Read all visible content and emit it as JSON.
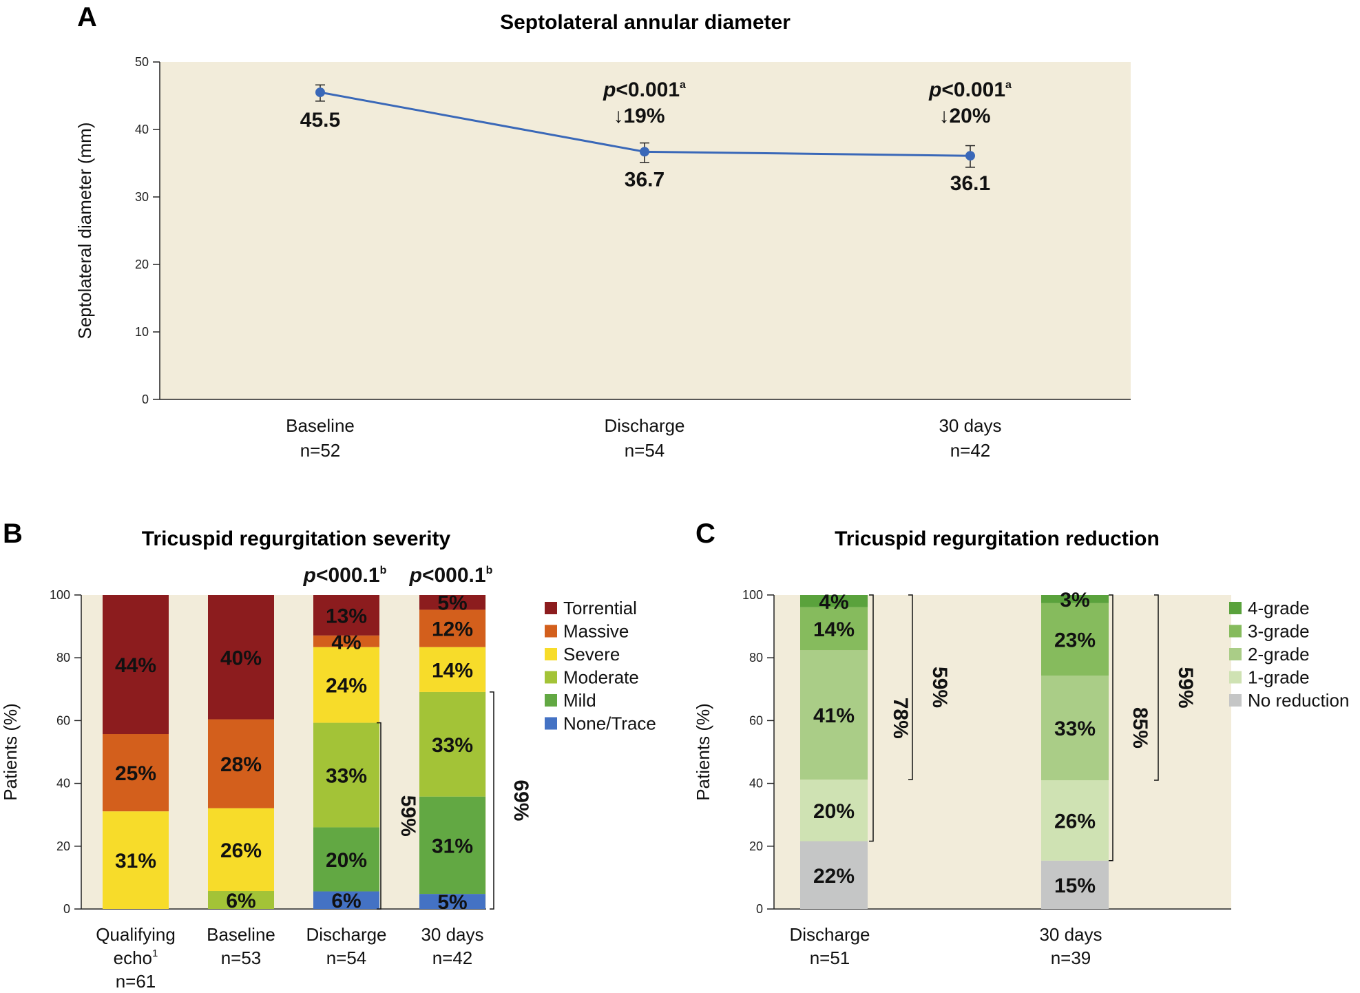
{
  "chart_data": [
    {
      "panel": "A",
      "type": "line",
      "title": "Septolateral annular diameter",
      "ylabel": "Septolateral diameter (mm)",
      "ylim": [
        0,
        50
      ],
      "yticks": [
        "0",
        "10",
        "20",
        "30",
        "40",
        "50"
      ],
      "categories": [
        {
          "label": "Baseline",
          "n": "n=52"
        },
        {
          "label": "Discharge",
          "n": "n=54"
        },
        {
          "label": "30 days",
          "n": "n=42"
        }
      ],
      "values": [
        45.5,
        36.7,
        36.1
      ],
      "value_labels": [
        "45.5",
        "36.7",
        "36.1"
      ],
      "error": [
        {
          "lo": 44.2,
          "hi": 46.6
        },
        {
          "lo": 35.1,
          "hi": 38.0
        },
        {
          "lo": 34.4,
          "hi": 37.6
        }
      ],
      "annotations": [
        {
          "point": 1,
          "p_prefix": "p",
          "p_text": "<0.001",
          "p_sup": "a",
          "change": "↓19%"
        },
        {
          "point": 2,
          "p_prefix": "p",
          "p_text": "<0.001",
          "p_sup": "a",
          "change": "↓20%"
        }
      ],
      "color": "#3a68b8",
      "background": "#f2ecda"
    },
    {
      "panel": "B",
      "type": "bar",
      "stacked": true,
      "title": "Tricuspid regurgitation severity",
      "ylabel": "Patients (%)",
      "ylim": [
        0,
        100
      ],
      "yticks": [
        "0",
        "20",
        "40",
        "60",
        "80",
        "100"
      ],
      "categories": [
        {
          "line1": "Qualifying",
          "line2": "echo",
          "line2_sup": "1",
          "n": "n=61"
        },
        {
          "line1": "Baseline",
          "line2": "",
          "line2_sup": "",
          "n": "n=53"
        },
        {
          "line1": "Discharge",
          "line2": "",
          "line2_sup": "",
          "n": "n=54"
        },
        {
          "line1": "30 days",
          "line2": "",
          "line2_sup": "",
          "n": "n=42"
        }
      ],
      "series": [
        {
          "name": "None/Trace",
          "color": "#4472c4",
          "values": [
            0,
            0,
            5.6,
            4.8
          ],
          "labels": [
            "",
            "",
            "6%",
            "5%"
          ]
        },
        {
          "name": "Mild",
          "color": "#62a843",
          "values": [
            0,
            0,
            20.4,
            31.0
          ],
          "labels": [
            "",
            "",
            "20%",
            "31%"
          ]
        },
        {
          "name": "Moderate",
          "color": "#a3c337",
          "values": [
            0,
            5.7,
            33.3,
            33.3
          ],
          "labels": [
            "",
            "6%",
            "33%",
            "33%"
          ]
        },
        {
          "name": "Severe",
          "color": "#f7dc2a",
          "values": [
            31.1,
            26.4,
            24.1,
            14.3
          ],
          "labels": [
            "31%",
            "26%",
            "24%",
            "14%"
          ]
        },
        {
          "name": "Massive",
          "color": "#d35f1c",
          "values": [
            24.6,
            28.3,
            3.7,
            11.9
          ],
          "labels": [
            "25%",
            "28%",
            "4%",
            "12%"
          ]
        },
        {
          "name": "Torrential",
          "color": "#8c1c1e",
          "values": [
            44.3,
            39.6,
            12.9,
            4.7
          ],
          "labels": [
            "44%",
            "40%",
            "13%",
            "5%"
          ]
        }
      ],
      "legend_order": [
        "Torrential",
        "Massive",
        "Severe",
        "Moderate",
        "Mild",
        "None/Trace"
      ],
      "bracket_labels": [
        "59%",
        "69%"
      ],
      "p_values": [
        {
          "bar": 2,
          "prefix": "p",
          "text": "<000.1",
          "sup": "b"
        },
        {
          "bar": 3,
          "prefix": "p",
          "text": "<000.1",
          "sup": "b"
        }
      ],
      "legend_position": "right",
      "background": "#f2ecda"
    },
    {
      "panel": "C",
      "type": "bar",
      "stacked": true,
      "title": "Tricuspid regurgitation reduction",
      "ylabel": "Patients (%)",
      "ylim": [
        0,
        100
      ],
      "yticks": [
        "0",
        "20",
        "40",
        "60",
        "80",
        "100"
      ],
      "categories": [
        {
          "line1": "Discharge",
          "n": "n=51"
        },
        {
          "line1": "30 days",
          "n": "n=39"
        }
      ],
      "series": [
        {
          "name": "No reduction",
          "color": "#c5c6c6",
          "values": [
            21.6,
            15.4
          ],
          "labels": [
            "22%",
            "15%"
          ]
        },
        {
          "name": "1-grade",
          "color": "#cfe2b3",
          "values": [
            19.6,
            25.6
          ],
          "labels": [
            "20%",
            "26%"
          ]
        },
        {
          "name": "2-grade",
          "color": "#aacd87",
          "values": [
            41.2,
            33.3
          ],
          "labels": [
            "41%",
            "33%"
          ]
        },
        {
          "name": "3-grade",
          "color": "#86bb5d",
          "values": [
            13.7,
            23.1
          ],
          "labels": [
            "14%",
            "23%"
          ]
        },
        {
          "name": "4-grade",
          "color": "#5aa23c",
          "values": [
            3.9,
            2.6
          ],
          "labels": [
            "4%",
            "3%"
          ]
        }
      ],
      "legend_order": [
        "4-grade",
        "3-grade",
        "2-grade",
        "1-grade",
        "No reduction"
      ],
      "bracket_labels": [
        "78%",
        "59%",
        "85%",
        "59%"
      ],
      "legend_position": "right",
      "background": "#f2ecda"
    }
  ],
  "panels": {
    "a_letter": "A",
    "b_letter": "B",
    "c_letter": "C"
  }
}
